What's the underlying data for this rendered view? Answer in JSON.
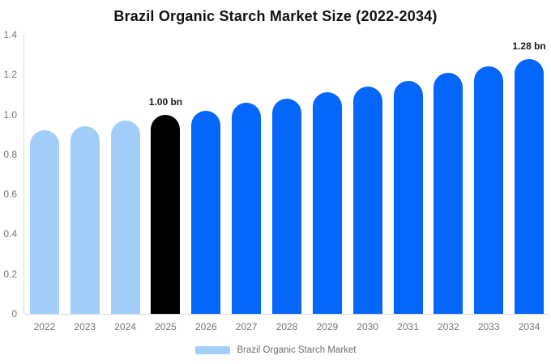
{
  "page_title": "Brazil Organic Starch Market Size (2022-2034)",
  "chart_data": {
    "type": "bar",
    "title": "Brazil Organic Starch Market Size (2022-2034)",
    "categories": [
      "2022",
      "2023",
      "2024",
      "2025",
      "2026",
      "2027",
      "2028",
      "2029",
      "2030",
      "2031",
      "2032",
      "2033",
      "2034"
    ],
    "values": [
      0.92,
      0.94,
      0.97,
      1.0,
      1.02,
      1.06,
      1.08,
      1.11,
      1.14,
      1.17,
      1.21,
      1.24,
      1.28
    ],
    "bar_colors": [
      "#A2CFFA",
      "#A2CFFA",
      "#A2CFFA",
      "#000000",
      "#0566FB",
      "#0566FB",
      "#0566FB",
      "#0566FB",
      "#0566FB",
      "#0566FB",
      "#0566FB",
      "#0566FB",
      "#0566FB"
    ],
    "value_labels": [
      {
        "category": "2025",
        "text": "1.00 bn"
      },
      {
        "category": "2034",
        "text": "1.28 bn"
      }
    ],
    "xlabel": "",
    "ylabel": "",
    "ylim": [
      0,
      1.4
    ],
    "y_ticks": [
      {
        "value": 1.4,
        "label": "1.4"
      },
      {
        "value": 1.2,
        "label": "1.2"
      },
      {
        "value": 1.0,
        "label": "1.0"
      },
      {
        "value": 0.8,
        "label": "0.8"
      },
      {
        "value": 0.6,
        "label": "0.6"
      },
      {
        "value": 0.4,
        "label": "0.4"
      },
      {
        "value": 0.2,
        "label": "0.2"
      },
      {
        "value": 0.0,
        "label": "0"
      }
    ],
    "grid": "off",
    "legend_position": "bottom"
  },
  "legend": {
    "label": "Brazil Organic Starch Market",
    "swatch_color": "#A2CFFA"
  },
  "colors": {
    "historical_bar": "#A2CFFA",
    "base_year_bar": "#000000",
    "forecast_bar": "#0566FB",
    "axis_line": "#D9D9D9",
    "tick_text": "#757575",
    "value_label_text": "#1A1A1A",
    "title_text": "#111111"
  }
}
